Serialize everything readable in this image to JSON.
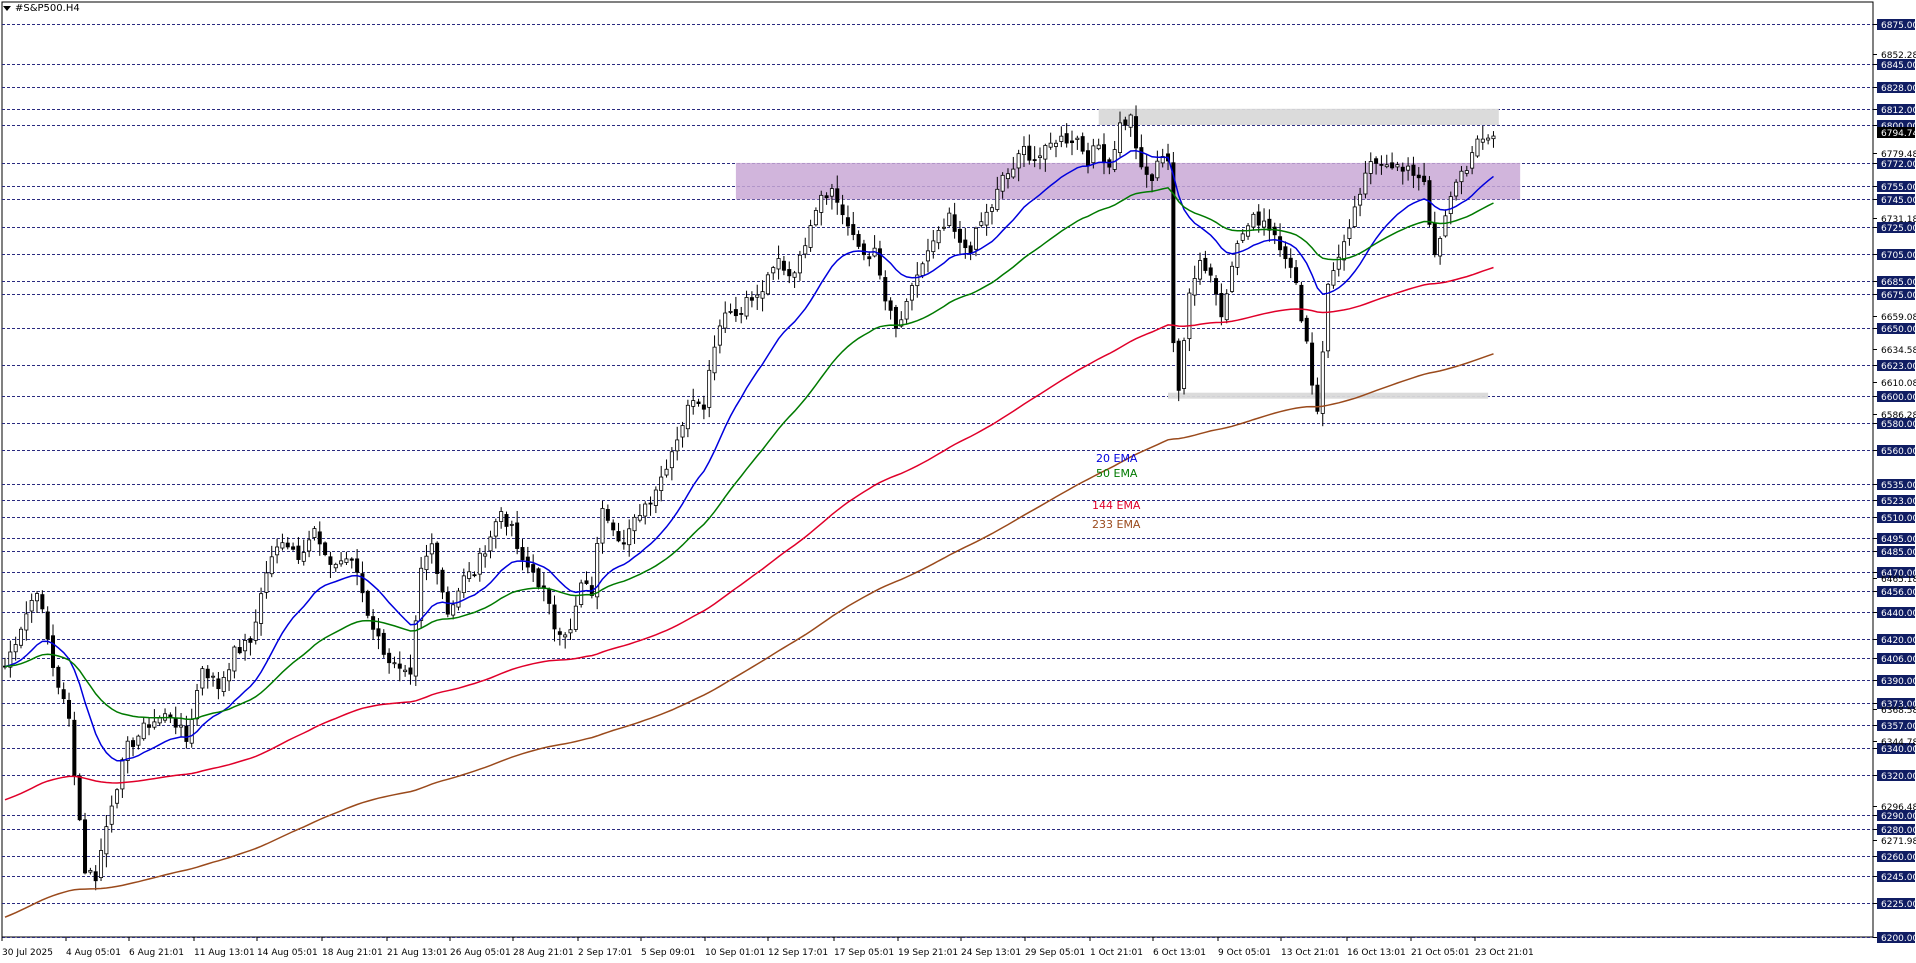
{
  "symbol": "#S&P500.H4",
  "chart_data": {
    "type": "candlestick",
    "title": "#S&P500.H4",
    "ylim": [
      6200,
      6885
    ],
    "y_ticks": [
      6875,
      6845,
      6828,
      6812,
      6800,
      6772,
      6755,
      6745,
      6725,
      6705,
      6685,
      6675,
      6650,
      6623,
      6600,
      6580,
      6560,
      6535,
      6523,
      6510,
      6495,
      6485,
      6470,
      6456,
      6440,
      6420,
      6406,
      6390,
      6373,
      6357,
      6340,
      6320,
      6290,
      6280,
      6260,
      6245,
      6225,
      6200
    ],
    "minor_labels": [
      "6852.28",
      "6779.48",
      "6731.18",
      "6659.08",
      "6634.58",
      "6610.08",
      "6586.28",
      "6465.18",
      "6368.58",
      "6344.78",
      "6296.48",
      "6271.98"
    ],
    "current_price": 6794.74,
    "x_labels": [
      "30 Jul 2025",
      "4 Aug 05:01",
      "6 Aug 21:01",
      "11 Aug 13:01",
      "14 Aug 05:01",
      "18 Aug 21:01",
      "21 Aug 13:01",
      "26 Aug 05:01",
      "28 Aug 21:01",
      "2 Sep 17:01",
      "5 Sep 09:01",
      "10 Sep 01:01",
      "12 Sep 17:01",
      "17 Sep 05:01",
      "19 Sep 21:01",
      "24 Sep 13:01",
      "29 Sep 05:01",
      "1 Oct 21:01",
      "6 Oct 13:01",
      "9 Oct 05:01",
      "13 Oct 21:01",
      "16 Oct 13:01",
      "21 Oct 05:01",
      "23 Oct 21:01"
    ],
    "price_path": [
      [
        0,
        6400
      ],
      [
        3,
        6430
      ],
      [
        6,
        6458
      ],
      [
        9,
        6400
      ],
      [
        12,
        6360
      ],
      [
        15,
        6250
      ],
      [
        17,
        6245
      ],
      [
        20,
        6300
      ],
      [
        23,
        6340
      ],
      [
        27,
        6358
      ],
      [
        31,
        6365
      ],
      [
        34,
        6345
      ],
      [
        37,
        6400
      ],
      [
        40,
        6385
      ],
      [
        43,
        6410
      ],
      [
        46,
        6418
      ],
      [
        49,
        6470
      ],
      [
        52,
        6495
      ],
      [
        55,
        6483
      ],
      [
        58,
        6500
      ],
      [
        60,
        6478
      ],
      [
        62,
        6476
      ],
      [
        64,
        6480
      ],
      [
        66,
        6470
      ],
      [
        68,
        6440
      ],
      [
        70,
        6420
      ],
      [
        72,
        6405
      ],
      [
        74,
        6395
      ],
      [
        76,
        6390
      ],
      [
        78,
        6470
      ],
      [
        80,
        6490
      ],
      [
        83,
        6440
      ],
      [
        86,
        6465
      ],
      [
        88,
        6470
      ],
      [
        90,
        6488
      ],
      [
        93,
        6515
      ],
      [
        95,
        6500
      ],
      [
        97,
        6475
      ],
      [
        99,
        6470
      ],
      [
        101,
        6455
      ],
      [
        103,
        6430
      ],
      [
        106,
        6425
      ],
      [
        108,
        6460
      ],
      [
        110,
        6455
      ],
      [
        112,
        6520
      ],
      [
        114,
        6505
      ],
      [
        116,
        6490
      ],
      [
        119,
        6515
      ],
      [
        121,
        6525
      ],
      [
        123,
        6540
      ],
      [
        126,
        6570
      ],
      [
        129,
        6600
      ],
      [
        131,
        6595
      ],
      [
        133,
        6640
      ],
      [
        135,
        6665
      ],
      [
        137,
        6660
      ],
      [
        139,
        6670
      ],
      [
        141,
        6672
      ],
      [
        143,
        6685
      ],
      [
        145,
        6700
      ],
      [
        147,
        6690
      ],
      [
        149,
        6700
      ],
      [
        151,
        6730
      ],
      [
        153,
        6750
      ],
      [
        155,
        6752
      ],
      [
        157,
        6735
      ],
      [
        159,
        6715
      ],
      [
        161,
        6705
      ],
      [
        163,
        6705
      ],
      [
        165,
        6670
      ],
      [
        167,
        6648
      ],
      [
        169,
        6665
      ],
      [
        171,
        6690
      ],
      [
        173,
        6705
      ],
      [
        175,
        6718
      ],
      [
        177,
        6730
      ],
      [
        179,
        6710
      ],
      [
        181,
        6710
      ],
      [
        183,
        6728
      ],
      [
        185,
        6740
      ],
      [
        187,
        6760
      ],
      [
        189,
        6768
      ],
      [
        191,
        6782
      ],
      [
        193,
        6775
      ],
      [
        195,
        6780
      ],
      [
        197,
        6790
      ],
      [
        199,
        6790
      ],
      [
        201,
        6790
      ],
      [
        203,
        6775
      ],
      [
        205,
        6785
      ],
      [
        207,
        6770
      ],
      [
        209,
        6800
      ],
      [
        211,
        6805
      ],
      [
        213,
        6765
      ],
      [
        215,
        6760
      ],
      [
        217,
        6780
      ],
      [
        218,
        6775
      ],
      [
        219,
        6640
      ],
      [
        220,
        6600
      ],
      [
        222,
        6680
      ],
      [
        224,
        6700
      ],
      [
        226,
        6690
      ],
      [
        228,
        6660
      ],
      [
        230,
        6700
      ],
      [
        232,
        6720
      ],
      [
        234,
        6730
      ],
      [
        236,
        6730
      ],
      [
        238,
        6720
      ],
      [
        240,
        6705
      ],
      [
        242,
        6680
      ],
      [
        244,
        6640
      ],
      [
        245,
        6610
      ],
      [
        246,
        6590
      ],
      [
        248,
        6680
      ],
      [
        250,
        6705
      ],
      [
        252,
        6720
      ],
      [
        254,
        6750
      ],
      [
        256,
        6770
      ],
      [
        258,
        6775
      ],
      [
        260,
        6772
      ],
      [
        262,
        6765
      ],
      [
        264,
        6765
      ],
      [
        266,
        6760
      ],
      [
        268,
        6700
      ],
      [
        270,
        6730
      ],
      [
        272,
        6760
      ],
      [
        274,
        6770
      ],
      [
        276,
        6785
      ],
      [
        278,
        6792
      ],
      [
        280,
        6795
      ]
    ],
    "zones": [
      {
        "type": "resistance",
        "range": [
          6800,
          6812
        ]
      },
      {
        "type": "supply",
        "range": [
          6745,
          6772
        ]
      },
      {
        "type": "support",
        "range": [
          6600,
          6600
        ]
      }
    ],
    "indicators": [
      {
        "name": "20 EMA",
        "color": "#0000dd",
        "period": 20
      },
      {
        "name": "50 EMA",
        "color": "#007a00",
        "period": 50
      },
      {
        "name": "144 EMA",
        "color": "#e0002a",
        "period": 144,
        "seed": 6300
      },
      {
        "name": "233 EMA",
        "color": "#9a4a1c",
        "period": 233,
        "seed": 6213
      }
    ]
  },
  "colors": {
    "grid": "#2a2a80",
    "badge_bg": "#101d63",
    "badge_fg": "#ffffff",
    "candle": "#000000"
  }
}
